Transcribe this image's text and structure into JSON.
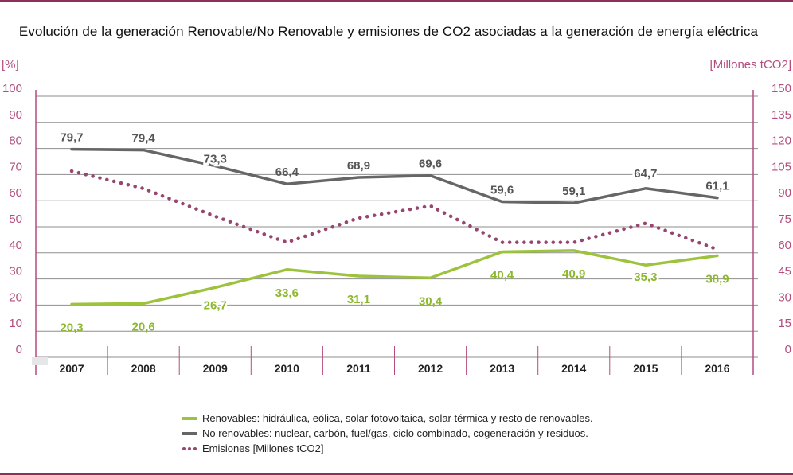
{
  "chart_data": {
    "type": "line",
    "title": "Evolución de la generación Renovable/No Renovable y emisiones de CO2 asociadas a la generación de energía eléctrica",
    "y_left_unit": "[%]",
    "y_right_unit": "[Millones tCO2]",
    "y_left_ticks": [
      "100",
      "90",
      "80",
      "70",
      "60",
      "50",
      "40",
      "30",
      "20",
      "10",
      "0"
    ],
    "y_right_ticks": [
      "150",
      "135",
      "120",
      "105",
      "90",
      "75",
      "60",
      "45",
      "30",
      "15",
      "0"
    ],
    "ylim_left": [
      0,
      100
    ],
    "ylim_right": [
      0,
      150
    ],
    "categories": [
      "2007",
      "2008",
      "2009",
      "2010",
      "2011",
      "2012",
      "2013",
      "2014",
      "2015",
      "2016"
    ],
    "grid": true,
    "legend_position": "bottom",
    "series": [
      {
        "name": "Renovables: hidráulica, eólica, solar fotovoltaica, solar térmica y resto de renovables.",
        "axis": "left",
        "color": "#9dc23b",
        "label_color": "#8db82e",
        "style": "solid",
        "values": [
          20.3,
          20.6,
          26.7,
          33.6,
          31.1,
          30.4,
          40.4,
          40.9,
          35.3,
          38.9
        ],
        "labels": [
          "20,3",
          "20,6",
          "26,7",
          "33,6",
          "31,1",
          "30,4",
          "40,4",
          "40,9",
          "35,3",
          "38,9"
        ]
      },
      {
        "name": "No renovables: nuclear, carbón, fuel/gas, ciclo combinado, cogeneración y residuos.",
        "axis": "left",
        "color": "#666666",
        "label_color": "#555555",
        "style": "solid",
        "values": [
          79.7,
          79.4,
          73.3,
          66.4,
          68.9,
          69.6,
          59.6,
          59.1,
          64.7,
          61.1
        ],
        "labels": [
          "79,7",
          "79,4",
          "73,3",
          "66,4",
          "68,9",
          "69,6",
          "59,6",
          "59,1",
          "64,7",
          "61,1"
        ]
      },
      {
        "name": "Emisiones [Millones tCO2]",
        "axis": "right",
        "color": "#97466f",
        "style": "dotted",
        "values": [
          107,
          97,
          81,
          66,
          80,
          87,
          66,
          66,
          77,
          62
        ]
      }
    ]
  }
}
